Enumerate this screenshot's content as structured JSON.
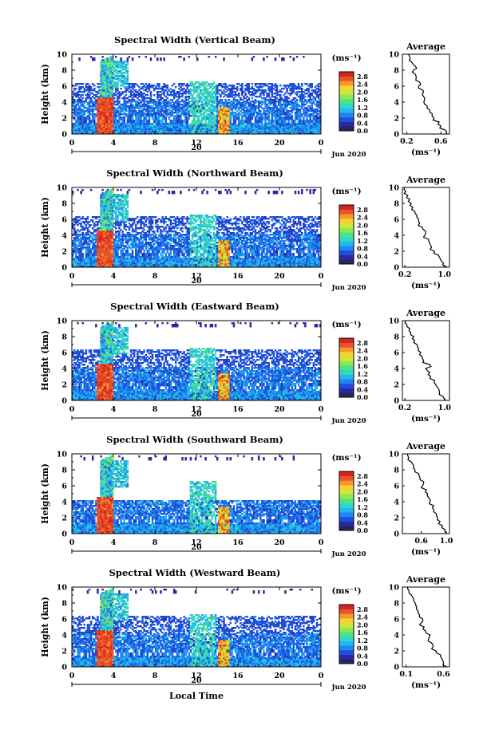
{
  "colors": {
    "colorbar": [
      "#26265e",
      "#2a2aa0",
      "#1f4fd8",
      "#1f86f0",
      "#22b7f0",
      "#2fd9c8",
      "#4fe08a",
      "#8fe84f",
      "#cfe63a",
      "#f7d232",
      "#f59a2a",
      "#e8532a",
      "#d8241f"
    ],
    "background": "#ffffff"
  },
  "chart_data": [
    {
      "type": "heatmap",
      "title": "Spectral Width (Vertical Beam)",
      "ylabel": "Height (km)",
      "yticks": [
        "0",
        "2",
        "4",
        "6",
        "8",
        "10"
      ],
      "ylim": [
        0,
        10
      ],
      "xticks": [
        "0",
        "4",
        "8",
        "12",
        "16",
        "20",
        "0"
      ],
      "xlim": [
        0,
        24
      ],
      "date_label": "20",
      "date_tag": "Jun 2020",
      "colorbar": {
        "unit_label": "(ms⁻¹)",
        "ticks": [
          "0.0",
          "0.4",
          "0.8",
          "1.2",
          "1.6",
          "2.0",
          "2.4",
          "2.8"
        ],
        "range": [
          0,
          2.8
        ]
      },
      "average": {
        "title": "Average",
        "xlabel": "(ms⁻¹)",
        "xticks": [
          "0.2",
          "0.6"
        ],
        "xtick_values": [
          0.2,
          0.6
        ],
        "xlim": [
          0.15,
          0.7
        ],
        "profile_x": [
          0.66,
          0.65,
          0.6,
          0.58,
          0.52,
          0.5,
          0.47,
          0.44,
          0.4,
          0.41,
          0.38,
          0.39,
          0.34,
          0.35,
          0.31,
          0.3,
          0.28,
          0.3,
          0.26,
          0.24,
          0.22
        ],
        "profile_y": [
          0.0,
          0.5,
          1.0,
          1.5,
          2.0,
          2.5,
          3.0,
          3.5,
          4.0,
          4.5,
          5.0,
          5.5,
          6.0,
          6.5,
          7.0,
          7.5,
          8.0,
          8.5,
          9.0,
          9.5,
          10.0
        ]
      }
    },
    {
      "type": "heatmap",
      "title": "Spectral Width (Northward Beam)",
      "ylabel": "Height (km)",
      "yticks": [
        "0",
        "2",
        "4",
        "6",
        "8",
        "10"
      ],
      "ylim": [
        0,
        10
      ],
      "xticks": [
        "0",
        "4",
        "8",
        "12",
        "16",
        "20",
        "0"
      ],
      "xlim": [
        0,
        24
      ],
      "date_label": "20",
      "date_tag": "Jun 2020",
      "colorbar": {
        "unit_label": "(ms⁻¹)",
        "ticks": [
          "0.0",
          "0.4",
          "0.8",
          "1.2",
          "1.6",
          "2.0",
          "2.4",
          "2.8"
        ],
        "range": [
          0,
          2.8
        ]
      },
      "average": {
        "title": "Average",
        "xlabel": "(ms⁻¹)",
        "xticks": [
          "0.2",
          "1.0"
        ],
        "xtick_values": [
          0.2,
          1.0
        ],
        "xlim": [
          0.15,
          1.1
        ],
        "profile_x": [
          1.05,
          0.98,
          0.92,
          0.88,
          0.8,
          0.74,
          0.7,
          0.68,
          0.6,
          0.62,
          0.55,
          0.5,
          0.48,
          0.44,
          0.4,
          0.36,
          0.33,
          0.3,
          0.26,
          0.22,
          0.2
        ],
        "profile_y": [
          0.0,
          0.5,
          1.0,
          1.5,
          2.0,
          2.5,
          3.0,
          3.5,
          4.0,
          4.5,
          5.0,
          5.5,
          6.0,
          6.5,
          7.0,
          7.5,
          8.0,
          8.5,
          9.0,
          9.5,
          10.0
        ]
      }
    },
    {
      "type": "heatmap",
      "title": "Spectral Width (Eastward Beam)",
      "ylabel": "Height (km)",
      "yticks": [
        "0",
        "2",
        "4",
        "6",
        "8",
        "10"
      ],
      "ylim": [
        0,
        10
      ],
      "xticks": [
        "0",
        "4",
        "8",
        "12",
        "16",
        "20",
        "0"
      ],
      "xlim": [
        0,
        24
      ],
      "date_label": "20",
      "date_tag": "Jun 2020",
      "colorbar": {
        "unit_label": "(ms⁻¹)",
        "ticks": [
          "0.0",
          "0.4",
          "0.8",
          "1.2",
          "1.6",
          "2.0",
          "2.4",
          "2.8"
        ],
        "range": [
          0,
          2.8
        ]
      },
      "average": {
        "title": "Average",
        "xlabel": "(ms⁻¹)",
        "xticks": [
          "0.2",
          "1.0"
        ],
        "xtick_values": [
          0.2,
          1.0
        ],
        "xlim": [
          0.15,
          1.1
        ],
        "profile_x": [
          1.02,
          0.97,
          0.9,
          0.88,
          0.82,
          0.8,
          0.72,
          0.7,
          0.62,
          0.7,
          0.58,
          0.55,
          0.52,
          0.48,
          0.45,
          0.4,
          0.38,
          0.32,
          0.3,
          0.24,
          0.22
        ],
        "profile_y": [
          0.0,
          0.5,
          1.0,
          1.5,
          2.0,
          2.5,
          3.0,
          3.5,
          4.0,
          4.5,
          5.0,
          5.5,
          6.0,
          6.5,
          7.0,
          7.5,
          8.0,
          8.5,
          9.0,
          9.5,
          10.0
        ]
      }
    },
    {
      "type": "heatmap",
      "title": "Spectral Width (Southward Beam)",
      "ylabel": "Height (km)",
      "yticks": [
        "0",
        "2",
        "4",
        "6",
        "8",
        "10"
      ],
      "ylim": [
        0,
        10
      ],
      "xticks": [
        "0",
        "4",
        "8",
        "12",
        "16",
        "20",
        "0"
      ],
      "xlim": [
        0,
        24
      ],
      "date_label": "20",
      "date_tag": "Jun 2020",
      "colorbar": {
        "unit_label": "(ms⁻¹)",
        "ticks": [
          "0.0",
          "0.4",
          "0.8",
          "1.2",
          "1.6",
          "2.0",
          "2.4",
          "2.8"
        ],
        "range": [
          0,
          2.8
        ]
      },
      "average": {
        "title": "Average",
        "xlabel": "(ms⁻¹)",
        "xticks": [
          "0.6",
          "1.0"
        ],
        "xtick_values": [
          0.6,
          1.0
        ],
        "xlim": [
          0.3,
          1.05
        ],
        "profile_x": [
          1.0,
          0.98,
          0.94,
          0.9,
          0.86,
          0.84,
          0.8,
          0.8,
          0.74,
          0.72,
          0.7,
          0.68,
          0.62,
          0.64,
          0.58,
          0.56,
          0.5,
          0.48,
          0.44,
          0.4,
          0.38
        ],
        "profile_y": [
          0.0,
          0.5,
          1.0,
          1.5,
          2.0,
          2.5,
          3.0,
          3.5,
          4.0,
          4.5,
          5.0,
          5.5,
          6.0,
          6.5,
          7.0,
          7.5,
          8.0,
          8.5,
          9.0,
          9.5,
          10.0
        ]
      }
    },
    {
      "type": "heatmap",
      "title": "Spectral Width (Westward Beam)",
      "xlabel": "Local Time",
      "ylabel": "Height (km)",
      "yticks": [
        "0",
        "2",
        "4",
        "6",
        "8",
        "10"
      ],
      "ylim": [
        0,
        10
      ],
      "xticks": [
        "0",
        "4",
        "8",
        "12",
        "16",
        "20",
        "0"
      ],
      "xlim": [
        0,
        24
      ],
      "date_label": "20",
      "date_tag": "Jun 2020",
      "colorbar": {
        "unit_label": "(ms⁻¹)",
        "ticks": [
          "0.0",
          "0.4",
          "0.8",
          "1.2",
          "1.6",
          "2.0",
          "2.4",
          "2.8"
        ],
        "range": [
          0,
          2.8
        ]
      },
      "average": {
        "title": "Average",
        "xlabel": "(ms⁻¹)",
        "xticks": [
          "0.1",
          "0.6"
        ],
        "xtick_values": [
          0.1,
          0.6
        ],
        "xlim": [
          0.05,
          0.68
        ],
        "profile_x": [
          0.64,
          0.6,
          0.58,
          0.56,
          0.5,
          0.46,
          0.44,
          0.4,
          0.42,
          0.36,
          0.34,
          0.3,
          0.32,
          0.28,
          0.26,
          0.24,
          0.22,
          0.2,
          0.17,
          0.14,
          0.12
        ],
        "profile_y": [
          0.0,
          0.5,
          1.0,
          1.5,
          2.0,
          2.5,
          3.0,
          3.5,
          4.0,
          4.5,
          5.0,
          5.5,
          6.0,
          6.5,
          7.0,
          7.5,
          8.0,
          8.5,
          9.0,
          9.5,
          10.0
        ]
      }
    }
  ]
}
